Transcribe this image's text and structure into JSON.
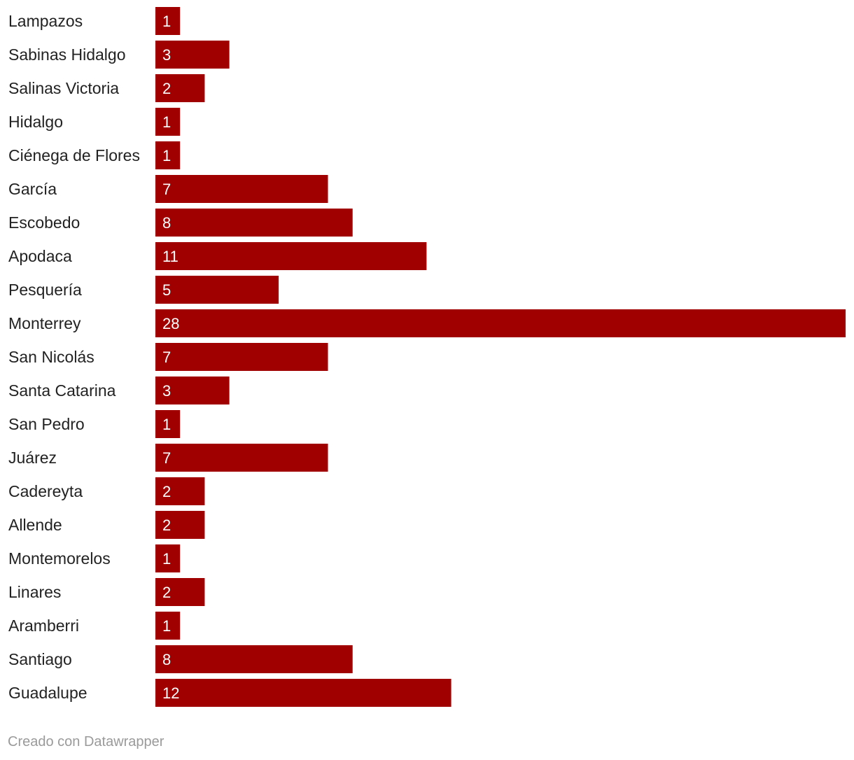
{
  "chart_data": {
    "type": "bar",
    "orientation": "horizontal",
    "categories": [
      "Lampazos",
      "Sabinas Hidalgo",
      "Salinas Victoria",
      "Hidalgo",
      "Ciénega de Flores",
      "García",
      "Escobedo",
      "Apodaca",
      "Pesquería",
      "Monterrey",
      "San Nicolás",
      "Santa Catarina",
      "San Pedro",
      "Juárez",
      "Cadereyta",
      "Allende",
      "Montemorelos",
      "Linares",
      "Aramberri",
      "Santiago",
      "Guadalupe"
    ],
    "values": [
      1,
      3,
      2,
      1,
      1,
      7,
      8,
      11,
      5,
      28,
      7,
      3,
      1,
      7,
      2,
      2,
      1,
      2,
      1,
      8,
      12
    ],
    "bar_color": "#a00000",
    "label_color": "#ffffff",
    "grid": false,
    "legend": "none"
  },
  "footer": {
    "credit": "Creado con Datawrapper"
  }
}
